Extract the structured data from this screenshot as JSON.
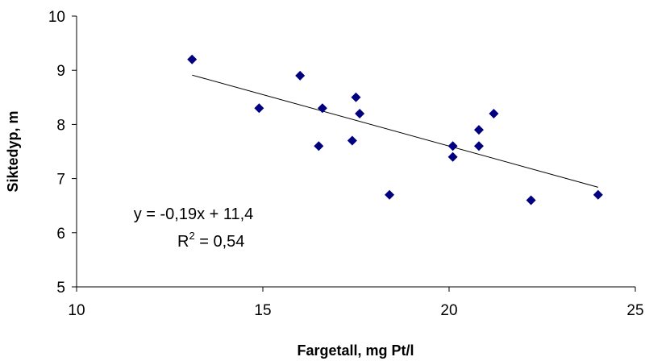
{
  "chart_data": {
    "type": "scatter",
    "title": "",
    "xlabel": "Fargetall, mg Pt/l",
    "ylabel": "Siktedyp, m",
    "xlim": [
      10,
      25
    ],
    "ylim": [
      5,
      10
    ],
    "x_ticks": [
      "10",
      "15",
      "20",
      "25"
    ],
    "y_ticks": [
      "5",
      "6",
      "7",
      "8",
      "9",
      "10"
    ],
    "grid": false,
    "legend": "none",
    "marker": "diamond",
    "marker_color": "#000080",
    "series": [
      {
        "points": [
          {
            "x": 13.1,
            "y": 9.2
          },
          {
            "x": 14.9,
            "y": 8.3
          },
          {
            "x": 16.0,
            "y": 8.9
          },
          {
            "x": 16.5,
            "y": 7.6
          },
          {
            "x": 16.6,
            "y": 8.3
          },
          {
            "x": 17.4,
            "y": 7.7
          },
          {
            "x": 17.5,
            "y": 8.5
          },
          {
            "x": 17.6,
            "y": 8.2
          },
          {
            "x": 18.4,
            "y": 6.7
          },
          {
            "x": 20.1,
            "y": 7.6
          },
          {
            "x": 20.1,
            "y": 7.4
          },
          {
            "x": 20.8,
            "y": 7.9
          },
          {
            "x": 20.8,
            "y": 7.6
          },
          {
            "x": 21.2,
            "y": 8.2
          },
          {
            "x": 22.2,
            "y": 6.6
          },
          {
            "x": 24.0,
            "y": 6.7
          }
        ]
      }
    ],
    "trendline": {
      "x_range": [
        13.1,
        24.0
      ],
      "slope": -0.19,
      "intercept": 11.4,
      "color": "#000000"
    },
    "annotations": {
      "equation": "y = -0,19x + 11,4",
      "r2_prefix": "R",
      "r2_exponent": "2",
      "r2_suffix": " = 0,54"
    }
  }
}
